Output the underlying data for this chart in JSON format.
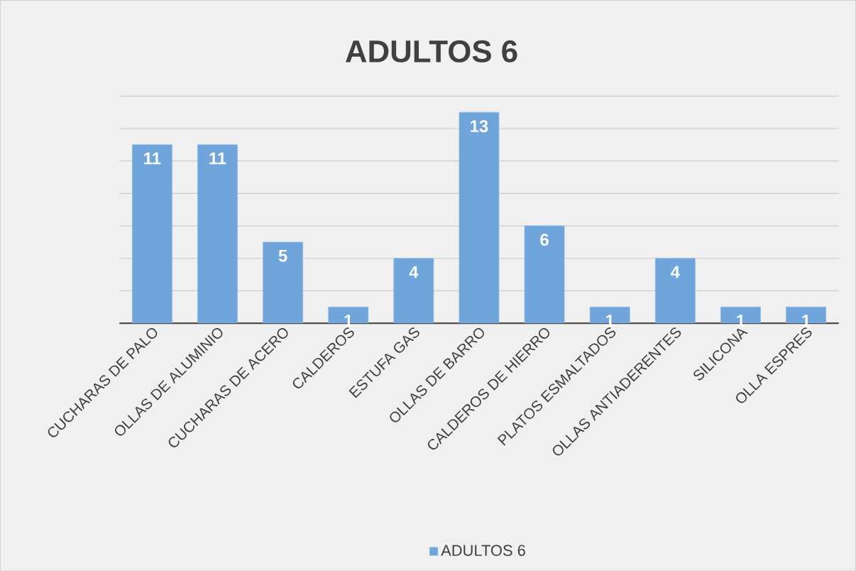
{
  "chart_data": {
    "type": "bar",
    "title": "ADULTOS 6",
    "categories": [
      "CUCHARAS DE PALO",
      "OLLAS DE ALUMINIO",
      "CUCHARAS DE ACERO",
      "CALDEROS",
      "ESTUFA GAS",
      "OLLAS DE BARRO",
      "CALDEROS DE HIERRO",
      "PLATOS ESMALTADOS",
      "OLLAS ANTIADERENTES",
      "SILICONA",
      "OLLA ESPRES"
    ],
    "series": [
      {
        "name": "ADULTOS 6",
        "color": "#6fa5da",
        "values": [
          11,
          11,
          5,
          1,
          4,
          13,
          6,
          1,
          4,
          1,
          1
        ]
      }
    ],
    "ylim": [
      0,
      14
    ],
    "yticks": [
      {
        "value": 0,
        "label": null
      },
      {
        "value": 2,
        "label": null
      },
      {
        "value": 4,
        "label": null
      },
      {
        "value": 6,
        "label": null
      },
      {
        "value": 8,
        "label": null
      },
      {
        "value": 10,
        "label": null
      },
      {
        "value": 12,
        "label": null
      },
      {
        "value": 14,
        "label": null
      }
    ],
    "tick_labels": "x",
    "grid": "y",
    "data_labels": true,
    "legend": "bottom"
  }
}
